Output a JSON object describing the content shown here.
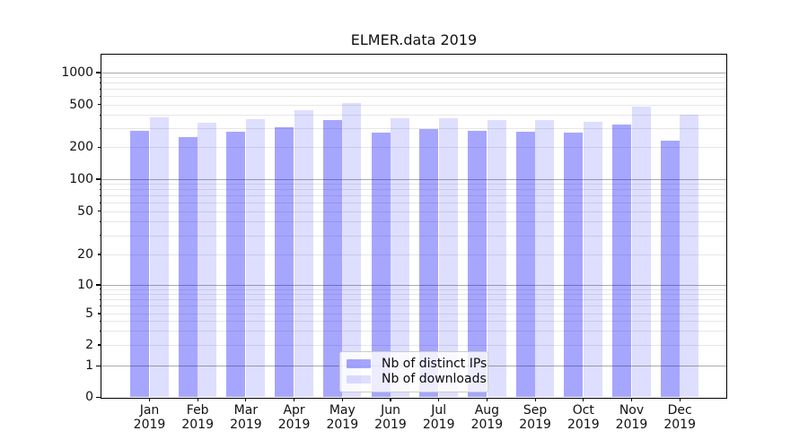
{
  "chart_data": {
    "type": "bar",
    "title": "ELMER.data 2019",
    "categories": [
      "Jan",
      "Feb",
      "Mar",
      "Apr",
      "May",
      "Jun",
      "Jul",
      "Aug",
      "Sep",
      "Oct",
      "Nov",
      "Dec"
    ],
    "category_year_line": "2019",
    "series": [
      {
        "name": "Nb of distinct IPs",
        "base_color": "#0000ff",
        "alpha": 0.35,
        "hex_on_white": "#a6a6ff",
        "values": [
          285,
          247,
          277,
          309,
          357,
          272,
          294,
          286,
          280,
          272,
          326,
          231
        ]
      },
      {
        "name": "Nb of downloads",
        "base_color": "#0000ff",
        "alpha": 0.13,
        "hex_on_white": "#dedeff",
        "values": [
          380,
          340,
          363,
          441,
          518,
          370,
          374,
          359,
          358,
          345,
          477,
          403
        ]
      }
    ],
    "yaxis": {
      "scale": "symlog",
      "tick_labels": [
        "0",
        "1",
        "2",
        "5",
        "10",
        "20",
        "50",
        "100",
        "200",
        "500",
        "1000"
      ],
      "tick_values": [
        0,
        1,
        2,
        5,
        10,
        20,
        50,
        100,
        200,
        500,
        1000
      ],
      "major_tick_values": [
        0,
        1,
        10,
        100,
        1000
      ],
      "ylim": [
        0,
        1480
      ]
    },
    "grid": "horizontal major and minor",
    "legend": {
      "location": "lower center"
    }
  }
}
